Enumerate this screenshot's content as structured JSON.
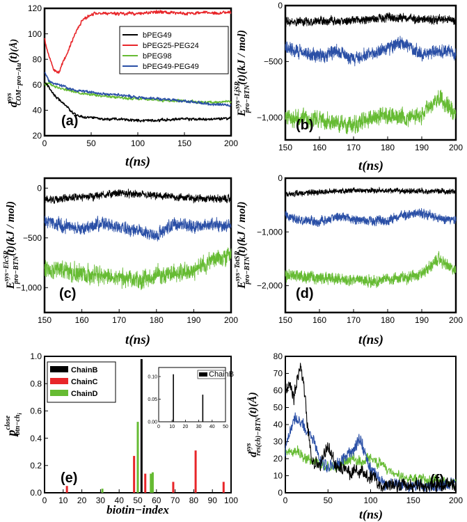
{
  "colors": {
    "black": "#000000",
    "red": "#e8262a",
    "green": "#66bb33",
    "blue": "#2a4fa6"
  },
  "chart_data": [
    {
      "id": "a",
      "type": "line",
      "panel_label": "(a)",
      "xlabel": {
        "main": "t",
        "paren_open": "(",
        "unit": "ns",
        "paren_close": ")"
      },
      "ylabel": {
        "sym": "d",
        "sup": "sys",
        "sub": "COM−pro−Au",
        "arg": "(t)",
        "unit": "(Å)"
      },
      "xlim": [
        0,
        200
      ],
      "ylim": [
        20,
        120
      ],
      "xticks": [
        "0",
        "50",
        "100",
        "150",
        "200"
      ],
      "yticks": [
        "20",
        "40",
        "60",
        "80",
        "100",
        "120"
      ],
      "legend": [
        "bPEG49",
        "bPEG25-PEG24",
        "bPEG98",
        "bPEG49-PEG49"
      ],
      "series": [
        {
          "name": "bPEG49",
          "color": "black",
          "x": [
            0,
            5,
            10,
            15,
            20,
            25,
            30,
            40,
            50,
            60,
            80,
            100,
            120,
            140,
            160,
            180,
            200
          ],
          "y": [
            62,
            58,
            52,
            49,
            46,
            42,
            38,
            35,
            34,
            33,
            33,
            32,
            32,
            33,
            33,
            33,
            34
          ]
        },
        {
          "name": "bPEG25-PEG24",
          "color": "red",
          "x": [
            0,
            2,
            5,
            10,
            15,
            20,
            25,
            30,
            35,
            40,
            50,
            60,
            80,
            100,
            120,
            150,
            200
          ],
          "y": [
            97,
            90,
            82,
            72,
            69,
            78,
            86,
            95,
            104,
            110,
            115,
            116,
            116,
            116,
            117,
            116,
            117
          ]
        },
        {
          "name": "bPEG98",
          "color": "green",
          "x": [
            0,
            5,
            10,
            20,
            30,
            40,
            50,
            60,
            80,
            100,
            120,
            150,
            180,
            200
          ],
          "y": [
            60,
            62,
            58,
            57,
            55,
            53,
            52,
            51,
            50,
            49,
            48,
            47,
            46,
            47
          ]
        },
        {
          "name": "bPEG49-PEG49",
          "color": "blue",
          "x": [
            0,
            5,
            10,
            20,
            30,
            40,
            50,
            60,
            80,
            100,
            120,
            150,
            180,
            200
          ],
          "y": [
            70,
            63,
            61,
            59,
            56,
            55,
            54,
            53,
            52,
            50,
            49,
            47,
            45,
            44
          ]
        }
      ]
    },
    {
      "id": "b",
      "type": "line",
      "panel_label": "(b)",
      "xlabel": {
        "main": "t",
        "paren_open": "(",
        "unit": "ns",
        "paren_close": ")"
      },
      "ylabel": {
        "sym": "E",
        "sup": "sys−LjSR",
        "sub": "pro−BTN",
        "arg": "(t)",
        "unit": "(kJ / mol)"
      },
      "xlim": [
        150,
        200
      ],
      "ylim": [
        -1200,
        0
      ],
      "xticks": [
        "150",
        "160",
        "170",
        "180",
        "190",
        "200"
      ],
      "yticks": [
        "0",
        "−500",
        "−1,000"
      ],
      "series": [
        {
          "name": "black",
          "color": "black",
          "x": [
            150,
            160,
            170,
            180,
            190,
            200
          ],
          "y": [
            -150,
            -140,
            -130,
            -110,
            -120,
            -130
          ],
          "noise": 35
        },
        {
          "name": "blue",
          "color": "blue",
          "x": [
            150,
            155,
            160,
            165,
            170,
            175,
            180,
            185,
            190,
            195,
            200
          ],
          "y": [
            -380,
            -420,
            -460,
            -400,
            -470,
            -440,
            -380,
            -330,
            -440,
            -400,
            -430
          ],
          "noise": 55
        },
        {
          "name": "green",
          "color": "green",
          "x": [
            150,
            160,
            165,
            170,
            175,
            180,
            185,
            190,
            195,
            200
          ],
          "y": [
            -1000,
            -1020,
            -1050,
            -1060,
            -1000,
            -980,
            -1000,
            -990,
            -830,
            -960
          ],
          "noise": 70
        }
      ]
    },
    {
      "id": "c",
      "type": "line",
      "panel_label": "(c)",
      "xlabel": {
        "main": "t",
        "paren_open": "(",
        "unit": "ns",
        "paren_close": ")"
      },
      "ylabel": {
        "sym": "E",
        "sup": "sys−ElcSR",
        "sub": "pro−BTN",
        "arg": "(t)",
        "unit": "(kJ / mol)"
      },
      "xlim": [
        150,
        200
      ],
      "ylim": [
        -1250,
        100
      ],
      "xticks": [
        "150",
        "160",
        "170",
        "180",
        "190",
        "200"
      ],
      "yticks": [
        "0",
        "−500",
        "−1,000"
      ],
      "series": [
        {
          "name": "black",
          "color": "black",
          "x": [
            150,
            160,
            170,
            180,
            190,
            200
          ],
          "y": [
            -120,
            -90,
            -50,
            -80,
            -100,
            -110
          ],
          "noise": 35
        },
        {
          "name": "blue",
          "color": "blue",
          "x": [
            150,
            155,
            160,
            165,
            170,
            175,
            180,
            185,
            190,
            195,
            200
          ],
          "y": [
            -330,
            -380,
            -420,
            -350,
            -400,
            -430,
            -470,
            -360,
            -380,
            -370,
            -380
          ],
          "noise": 60
        },
        {
          "name": "green",
          "color": "green",
          "x": [
            150,
            160,
            170,
            175,
            180,
            185,
            190,
            195,
            200
          ],
          "y": [
            -800,
            -860,
            -900,
            -930,
            -880,
            -860,
            -820,
            -720,
            -700
          ],
          "noise": 85
        }
      ]
    },
    {
      "id": "d",
      "type": "line",
      "panel_label": "(d)",
      "xlabel": {
        "main": "t",
        "paren_open": "(",
        "unit": "ns",
        "paren_close": ")"
      },
      "ylabel": {
        "sym": "E",
        "sup": "sys−TotSR",
        "sub": "pro−BTN",
        "arg": "(t)",
        "unit": "(kJ / mol)"
      },
      "xlim": [
        150,
        200
      ],
      "ylim": [
        -2500,
        0
      ],
      "xticks": [
        "150",
        "160",
        "170",
        "180",
        "190",
        "200"
      ],
      "yticks": [
        "0",
        "−1,000",
        "−2,000"
      ],
      "series": [
        {
          "name": "black",
          "color": "black",
          "x": [
            150,
            160,
            170,
            180,
            190,
            200
          ],
          "y": [
            -300,
            -260,
            -230,
            -230,
            -240,
            -250
          ],
          "noise": 45
        },
        {
          "name": "blue",
          "color": "blue",
          "x": [
            150,
            155,
            160,
            165,
            170,
            175,
            180,
            185,
            190,
            195,
            200
          ],
          "y": [
            -700,
            -780,
            -820,
            -700,
            -760,
            -800,
            -800,
            -680,
            -640,
            -760,
            -760
          ],
          "noise": 80
        },
        {
          "name": "green",
          "color": "green",
          "x": [
            150,
            160,
            170,
            175,
            180,
            185,
            190,
            195,
            200
          ],
          "y": [
            -1800,
            -1850,
            -1900,
            -1920,
            -1880,
            -1850,
            -1780,
            -1500,
            -1750
          ],
          "noise": 100
        }
      ]
    },
    {
      "id": "e",
      "type": "bar",
      "panel_label": "(e)",
      "xlabel": {
        "main": "biotin−index"
      },
      "ylabel": {
        "sym": "p",
        "sup": "close",
        "sub": "btn−ch",
        "subsub": "i"
      },
      "xlim": [
        0,
        100
      ],
      "ylim": [
        0,
        1.0
      ],
      "xticks": [
        "0",
        "10",
        "20",
        "30",
        "40",
        "50",
        "60",
        "70",
        "80",
        "90",
        "100"
      ],
      "yticks": [
        "0.0",
        "0.2",
        "0.4",
        "0.6",
        "0.8",
        "1.0"
      ],
      "legend": [
        "ChainB",
        "ChainC",
        "ChainD"
      ],
      "series": [
        {
          "name": "ChainB",
          "color": "black",
          "x": [
            52
          ],
          "y": [
            0.98
          ]
        },
        {
          "name": "ChainC",
          "color": "red",
          "x": [
            12,
            48,
            54,
            69,
            81,
            96
          ],
          "y": [
            0.05,
            0.27,
            0.14,
            0.08,
            0.31,
            0.08
          ]
        },
        {
          "name": "ChainD",
          "color": "green",
          "x": [
            31,
            50,
            57,
            58
          ],
          "y": [
            0.03,
            0.52,
            0.14,
            0.15
          ]
        }
      ],
      "inset": {
        "type": "bar",
        "xlim": [
          0,
          50
        ],
        "ylim": [
          0,
          0.12
        ],
        "xticks": [
          "0",
          "10",
          "20",
          "30",
          "40",
          "50"
        ],
        "yticks": [
          "0.00",
          "0.05",
          "0.10"
        ],
        "legend": [
          "ChainB"
        ],
        "series": [
          {
            "name": "ChainB",
            "color": "black",
            "x": [
              11,
              33
            ],
            "y": [
              0.105,
              0.06
            ]
          }
        ]
      }
    },
    {
      "id": "f",
      "type": "line",
      "panel_label": "(f)",
      "xlabel": {
        "main": "t",
        "paren_open": "(",
        "unit": "ns",
        "paren_close": ")"
      },
      "ylabel": {
        "sym": "d",
        "sup": "sys",
        "sub": "res(ch)−BTN",
        "arg": "(t)",
        "unit": "(Å)"
      },
      "xlim": [
        0,
        200
      ],
      "ylim": [
        0,
        80
      ],
      "xticks": [
        "0",
        "50",
        "100",
        "150",
        "200"
      ],
      "yticks": [
        "0",
        "10",
        "20",
        "30",
        "40",
        "50",
        "60",
        "70",
        "80"
      ],
      "series": [
        {
          "name": "black",
          "color": "black",
          "x": [
            0,
            5,
            10,
            15,
            18,
            22,
            26,
            30,
            40,
            50,
            60,
            80,
            100,
            110,
            120,
            150,
            200
          ],
          "y": [
            60,
            65,
            55,
            70,
            78,
            60,
            40,
            20,
            15,
            28,
            15,
            12,
            10,
            5,
            4,
            4,
            4
          ],
          "noise": 4
        },
        {
          "name": "blue",
          "color": "blue",
          "x": [
            0,
            10,
            20,
            30,
            40,
            50,
            60,
            70,
            80,
            88,
            95,
            100,
            110,
            120,
            150,
            200
          ],
          "y": [
            25,
            45,
            40,
            35,
            20,
            14,
            17,
            20,
            25,
            32,
            20,
            14,
            7,
            5,
            4,
            5
          ],
          "noise": 3.5
        },
        {
          "name": "green",
          "color": "green",
          "x": [
            0,
            10,
            20,
            30,
            40,
            50,
            60,
            70,
            80,
            90,
            100,
            110,
            120,
            150,
            200
          ],
          "y": [
            25,
            24,
            22,
            18,
            17,
            15,
            15,
            18,
            20,
            18,
            20,
            18,
            12,
            8,
            6
          ],
          "noise": 3
        }
      ]
    }
  ]
}
